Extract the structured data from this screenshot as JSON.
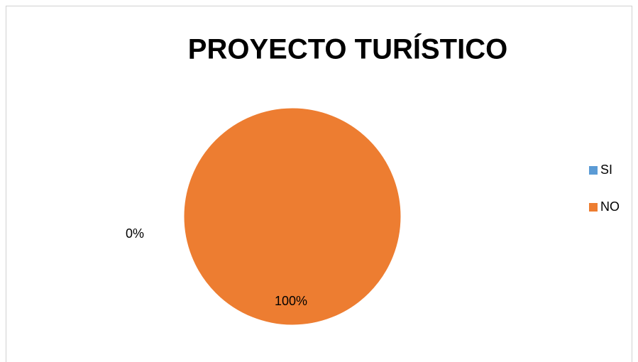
{
  "chart_data": {
    "type": "pie",
    "title": "PROYECTO TURÍSTICO",
    "categories": [
      "SI",
      "NO"
    ],
    "values": [
      0,
      100
    ],
    "value_labels": [
      "0%",
      "100%"
    ],
    "colors": [
      "#5b9bd5",
      "#ed7d31"
    ],
    "legend": "right"
  }
}
